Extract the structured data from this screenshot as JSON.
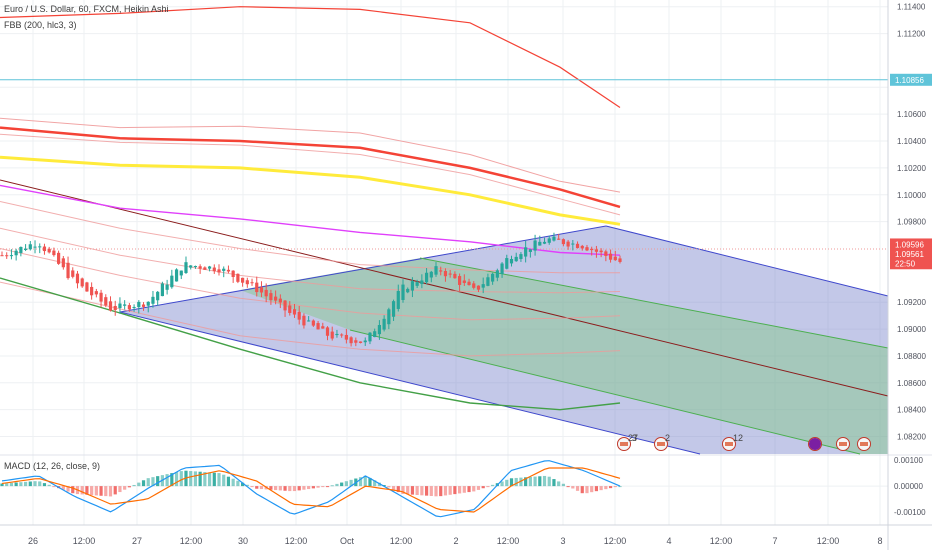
{
  "header": {
    "title": "Euro / U.S. Dollar, 60, FXCM, Heikin Ashi",
    "indicator": "FBB (200, hlc3, 3)",
    "macd": "MACD (12, 26, close, 9)"
  },
  "price_axis": {
    "ticks": [
      "1.11400",
      "1.11200",
      "1.10856",
      "1.10600",
      "1.10400",
      "1.10200",
      "1.10000",
      "1.09800",
      "1.09596",
      "1.09561",
      "22:50",
      "1.09200",
      "1.09000",
      "1.08800",
      "1.08600",
      "1.08400",
      "1.08200"
    ],
    "label_hline": "1.10856",
    "label_close": "1.09596",
    "label_high": "1.09561",
    "label_timer": "22:50"
  },
  "macd_axis": {
    "ticks": [
      "0.00100",
      "0.00000",
      "-0.00100"
    ]
  },
  "time_axis": {
    "ticks": [
      "26",
      "12:00",
      "27",
      "12:00",
      "30",
      "12:00",
      "Oct",
      "12:00",
      "2",
      "12:00",
      "3",
      "12:00",
      "4",
      "12:00",
      "7",
      "12:00",
      "8"
    ]
  },
  "events": {
    "label_a": "27",
    "label_b": "3",
    "label_c": "2",
    "label_d": "12"
  },
  "colors": {
    "bull": "#26a69a",
    "bear": "#ef5350",
    "fork_blue": "#3f48cc",
    "fork_green": "#4caf50",
    "hline": "#5fc4d9",
    "basis": "#f44336",
    "upper_yellow": "#ffeb3b",
    "pink": "#e040fb",
    "lower_green": "#43a047",
    "macd_line": "#2196f3",
    "signal_line": "#ff6d00"
  },
  "chart_data": {
    "type": "candlestick",
    "title": "Euro / U.S. Dollar, 60, FXCM, Heikin Ashi",
    "ylim": [
      1.0807,
      1.1145
    ],
    "last_close": 1.09596,
    "horizontal_line": 1.10856,
    "bollinger_bands": {
      "x_end": "Oct 3 12:00",
      "basis": [
        1.112,
        1.1132,
        1.1135,
        1.113,
        1.1115,
        1.109,
        1.106
      ],
      "upper_1": [
        1.103,
        1.102,
        1.1022,
        1.1015,
        1.1005,
        1.0985,
        1.0978
      ],
      "upper_2": [
        1.105,
        1.1042,
        1.104,
        1.1035,
        1.102,
        1.1004,
        1.0991
      ],
      "lower_1": [
        1.0895,
        1.0885,
        1.087,
        1.0855,
        1.0845,
        1.084,
        1.0845
      ]
    },
    "heikin_ashi_path": [
      1.0955,
      1.0965,
      1.0935,
      1.0915,
      1.092,
      1.0948,
      1.0945,
      1.093,
      1.091,
      1.0895,
      1.089,
      1.093,
      1.0945,
      1.0928,
      1.0955,
      1.0967,
      1.0962,
      1.095
    ],
    "macd": {
      "ylim": [
        -0.0015,
        0.0012
      ],
      "histogram_trend": [
        0.0001,
        0.0002,
        -0.0003,
        -0.0004,
        0.0003,
        0.0006,
        0.0005,
        -0.0001,
        -0.0002,
        0.0,
        0.0004,
        -0.0003,
        -0.0004,
        -0.0002,
        0.0003,
        0.0004,
        -0.0003,
        0.0
      ],
      "macd_line": [
        0.0002,
        0.0004,
        -0.0004,
        -0.001,
        -0.0001,
        0.0007,
        0.0008,
        -0.0003,
        -0.0011,
        -0.0006,
        0.0004,
        -0.0004,
        -0.0012,
        -0.0009,
        0.0006,
        0.001,
        0.0006,
        0.0
      ],
      "signal_line": [
        0.0001,
        0.0003,
        -0.0001,
        -0.0007,
        -0.0005,
        0.0003,
        0.0006,
        0.0002,
        -0.0007,
        -0.0008,
        0.0,
        -0.0002,
        -0.0009,
        -0.001,
        0.0,
        0.0007,
        0.0007,
        0.0003
      ]
    }
  }
}
